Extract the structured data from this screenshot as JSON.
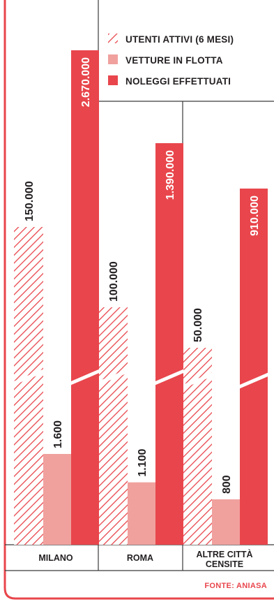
{
  "chart_data": {
    "type": "bar",
    "categories": [
      "MILANO",
      "ROMA",
      "ALTRE CITTÀ CENSITE"
    ],
    "category_lines": [
      [
        "MILANO"
      ],
      [
        "ROMA"
      ],
      [
        "ALTRE CITTÀ",
        "CENSITE"
      ]
    ],
    "series": [
      {
        "name": "UTENTI ATTIVI (6 MESI)",
        "values": [
          150000,
          100000,
          50000
        ],
        "labels": [
          "150.000",
          "100.000",
          "50.000"
        ],
        "color": "#e8464c",
        "pattern": "hatched"
      },
      {
        "name": "VETTURE IN FLOTTA",
        "values": [
          1600,
          1100,
          800
        ],
        "labels": [
          "1.600",
          "1.100",
          "800"
        ],
        "color": "#f0a19e",
        "pattern": "solid"
      },
      {
        "name": "NOLEGGI EFFETTUATI",
        "values": [
          2670000,
          1390000,
          910000
        ],
        "labels": [
          "2.670.000",
          "1.390.000",
          "910.000"
        ],
        "color": "#e8464c",
        "pattern": "solid"
      }
    ],
    "axis_break": true,
    "legend_position": "top-right",
    "source": "FONTE: ANIASA"
  },
  "colors": {
    "accent": "#e8464c",
    "light": "#f0a19e",
    "text": "#231f20"
  }
}
